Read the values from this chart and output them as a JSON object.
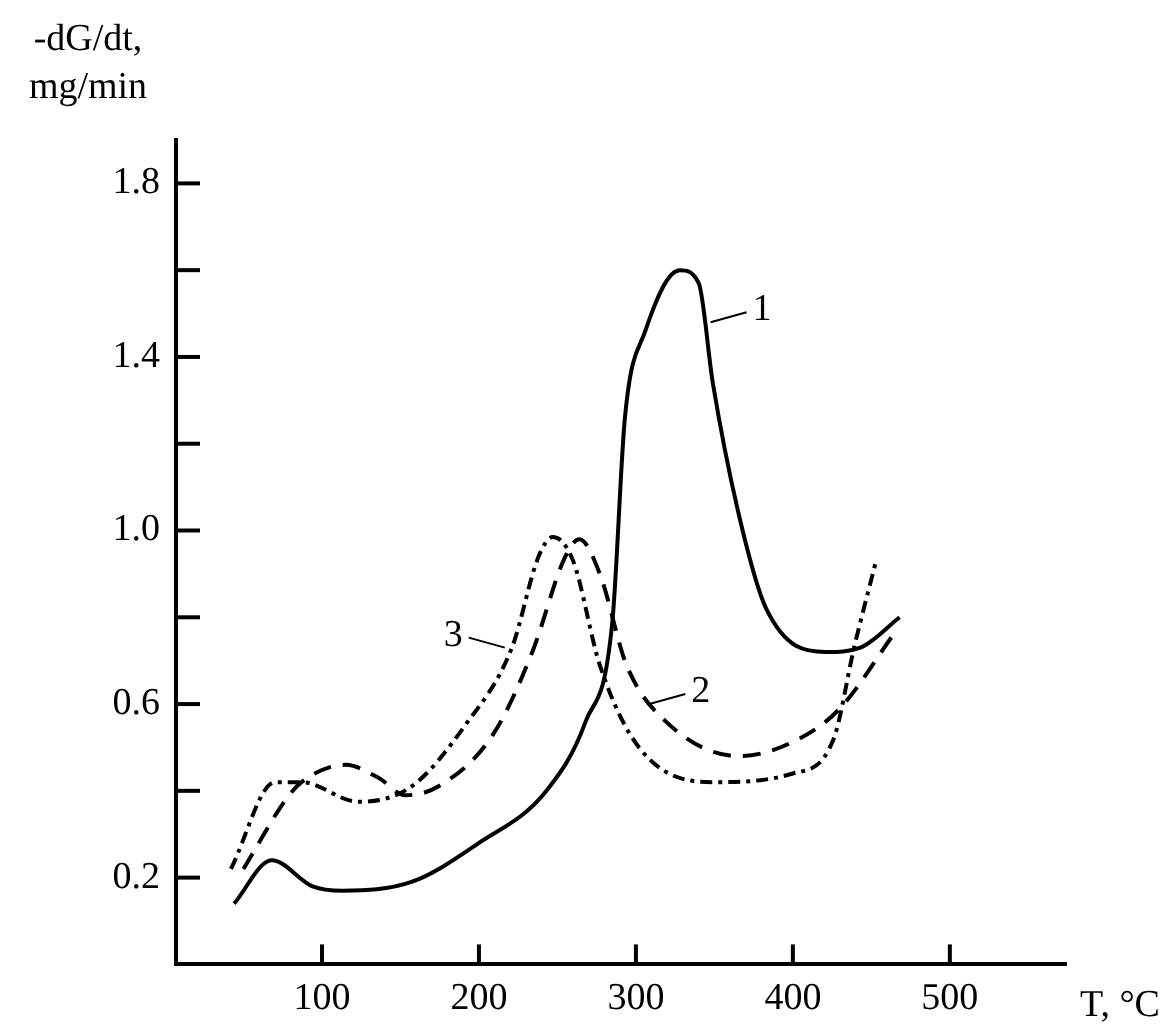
{
  "chart_data": {
    "type": "line",
    "xlabel": "T, °C",
    "ylabel": "-dG/dt, mg/min",
    "xlim": [
      7,
      574
    ],
    "ylim": [
      0,
      1.9
    ],
    "xticks": [
      100,
      200,
      300,
      400,
      500
    ],
    "yticks": [
      {
        "value": 0.2,
        "label": "0.2"
      },
      {
        "value": 0.4,
        "label": null
      },
      {
        "value": 0.6,
        "label": "0.6"
      },
      {
        "value": 0.8,
        "label": null
      },
      {
        "value": 1.0,
        "label": "1.0"
      },
      {
        "value": 1.2,
        "label": null
      },
      {
        "value": 1.4,
        "label": "1.4"
      },
      {
        "value": 1.6,
        "label": null
      },
      {
        "value": 1.8,
        "label": "1.8"
      }
    ],
    "grid": false,
    "legend": false,
    "marker": "none",
    "series": [
      {
        "color": "#000000",
        "line_style": "solid",
        "x": [
          44,
          68,
          94,
          113,
          157,
          200,
          243,
          268,
          285,
          293,
          306,
          328,
          340,
          349,
          366,
          383,
          421,
          443,
          468
        ],
        "values": [
          0.14,
          0.24,
          0.18,
          0.17,
          0.19,
          0.28,
          0.4,
          0.56,
          0.79,
          1.26,
          1.46,
          1.6,
          1.57,
          1.34,
          1.03,
          0.82,
          0.72,
          0.73,
          0.8
        ]
      },
      {
        "color": "#000000",
        "line_style": "dashed",
        "x": [
          50,
          77,
          87,
          115,
          136,
          153,
          174,
          209,
          234,
          255,
          264,
          277,
          294,
          319,
          366,
          404,
          430,
          464
        ],
        "values": [
          0.22,
          0.38,
          0.42,
          0.46,
          0.43,
          0.39,
          0.41,
          0.53,
          0.72,
          0.94,
          0.98,
          0.9,
          0.69,
          0.56,
          0.48,
          0.52,
          0.59,
          0.76
        ]
      },
      {
        "color": "#000000",
        "line_style": "dashdot",
        "x": [
          42,
          70,
          87,
          123,
          157,
          191,
          221,
          238,
          247,
          260,
          277,
          302,
          349,
          400,
          426,
          439,
          453
        ],
        "values": [
          0.22,
          0.42,
          0.42,
          0.375,
          0.41,
          0.55,
          0.73,
          0.94,
          0.985,
          0.93,
          0.69,
          0.5,
          0.42,
          0.44,
          0.52,
          0.73,
          0.93
        ]
      }
    ],
    "annotations": [
      {
        "text": "1",
        "x": 345,
        "y": 1.48
      },
      {
        "text": "2",
        "x": 306,
        "y": 0.6
      },
      {
        "text": "3",
        "x": 219,
        "y": 0.73
      }
    ]
  }
}
